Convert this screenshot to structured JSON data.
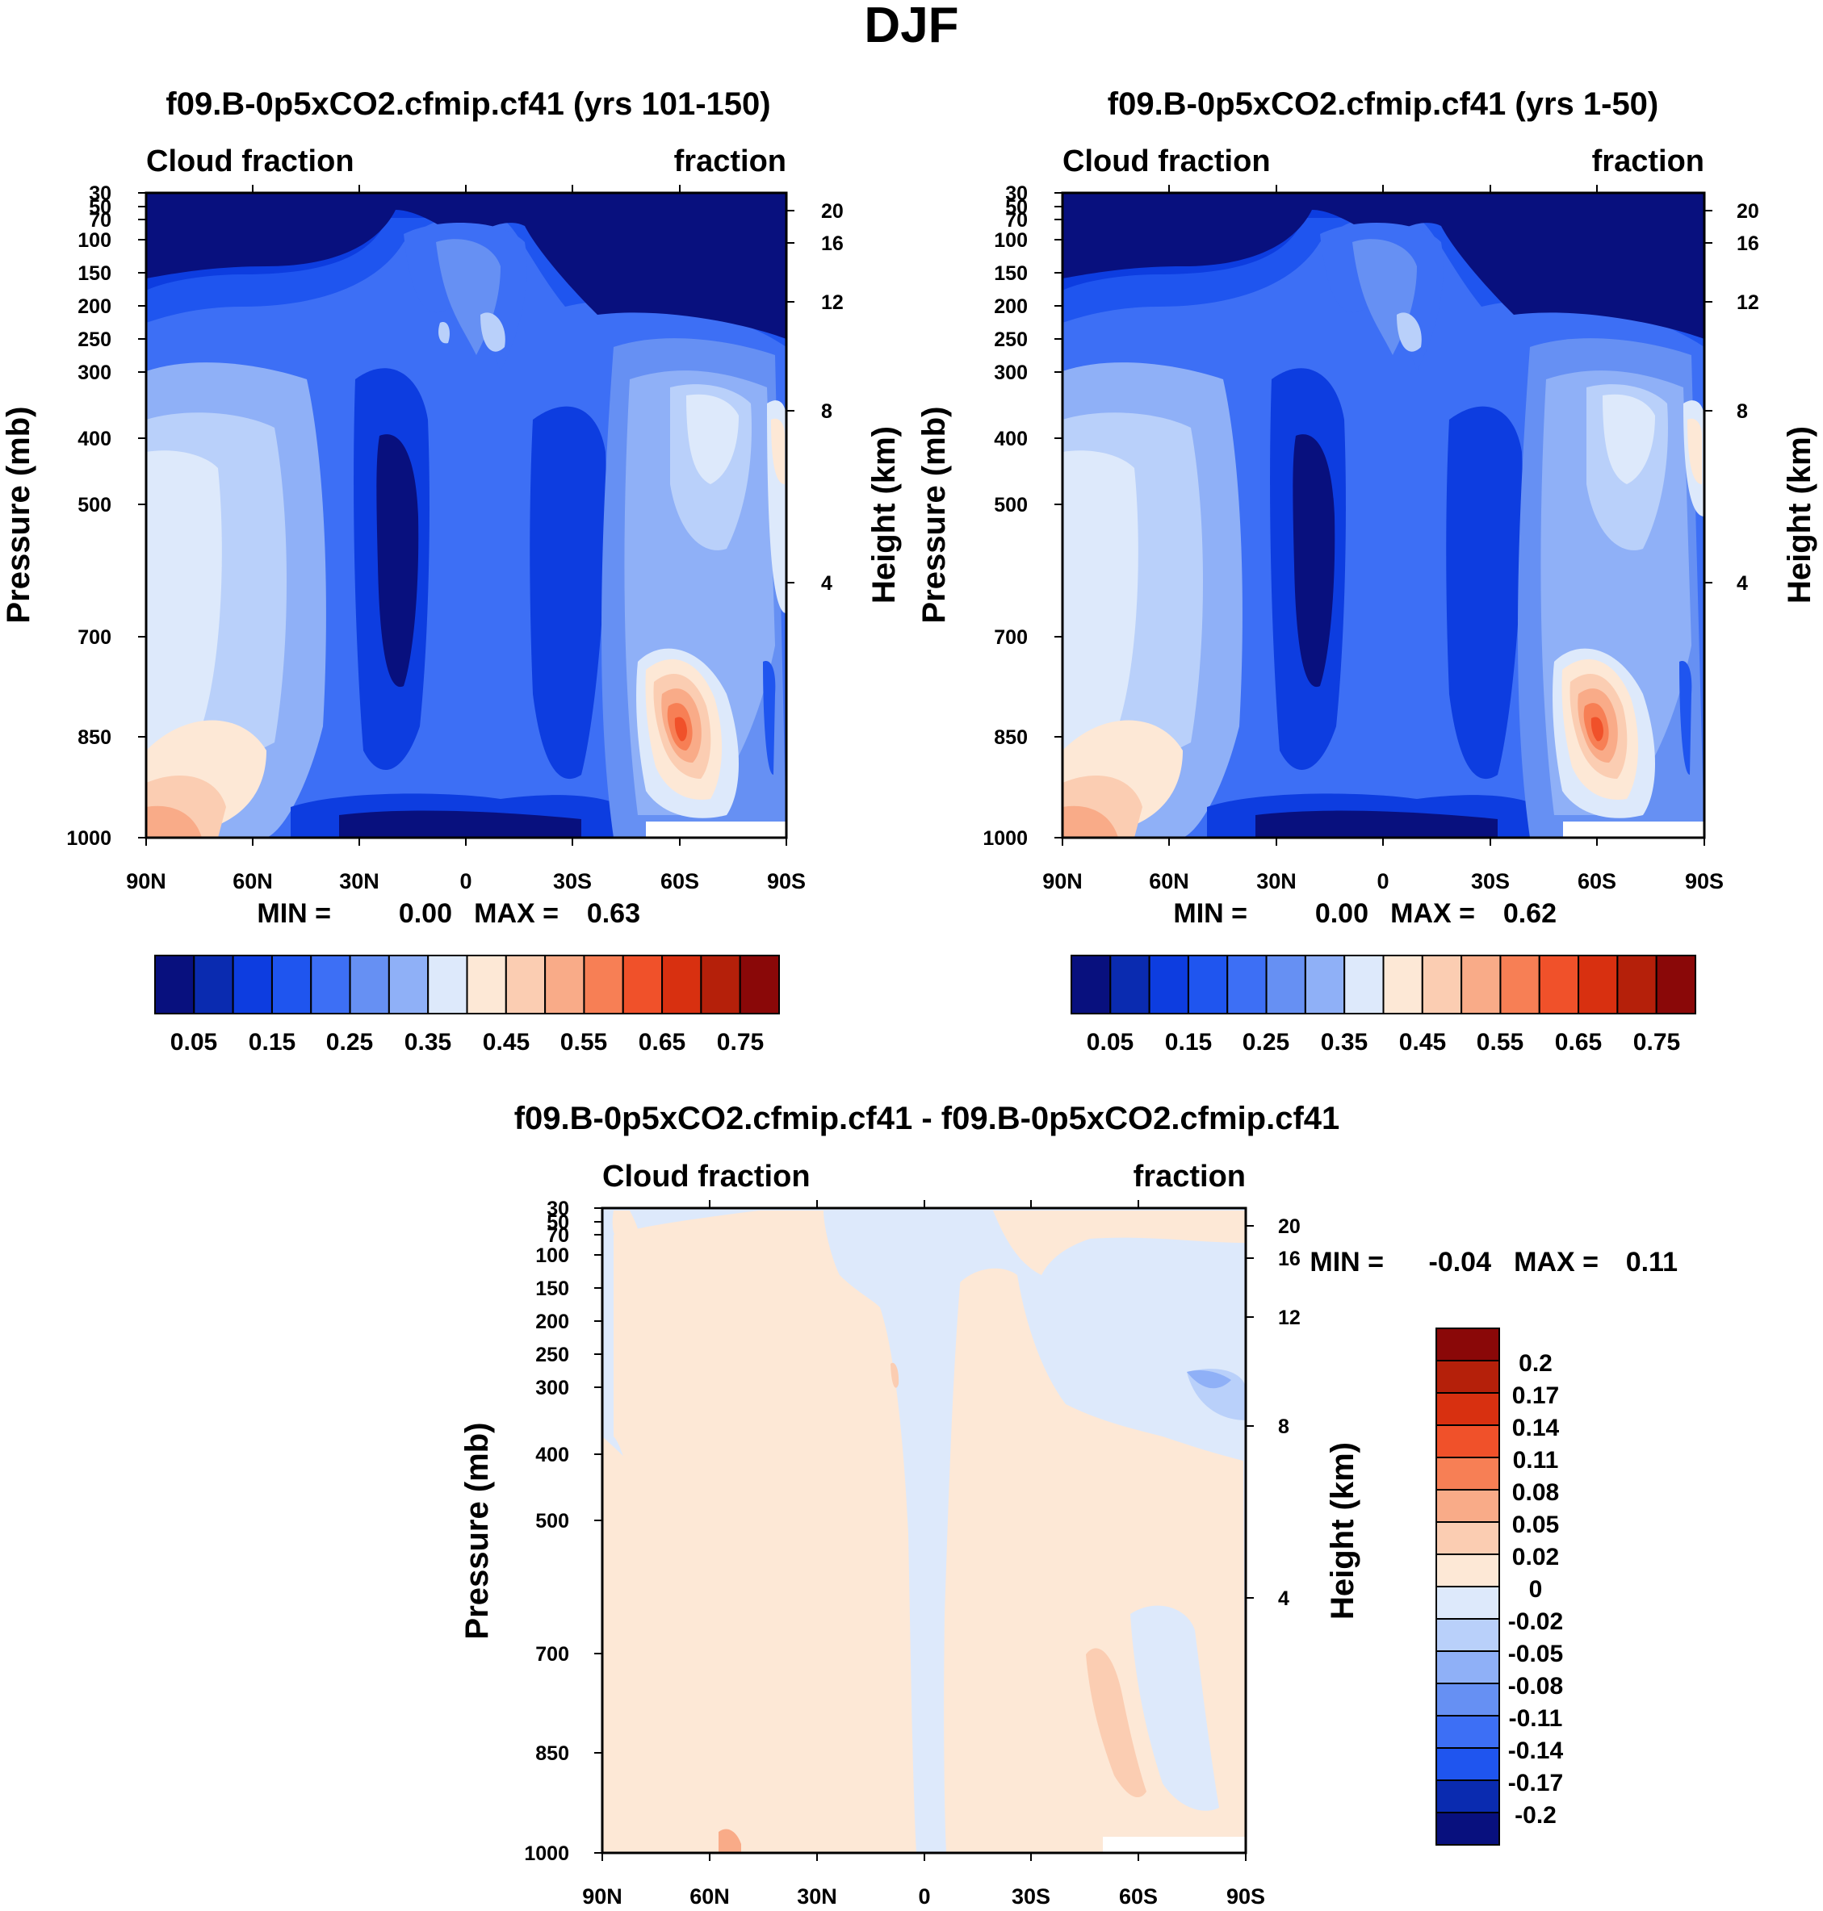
{
  "figure_title": "DJF",
  "chart_data": [
    {
      "type": "heatmap",
      "title": "f09.B-0p5xCO2.cfmip.cf41 (yrs 101-150)",
      "left_label": "Cloud fraction",
      "right_label": "fraction",
      "xlabel": "",
      "ylabel": "Pressure (mb)",
      "ylabel_right": "Height (km)",
      "x_ticks": [
        "90N",
        "60N",
        "30N",
        "0",
        "30S",
        "60S",
        "90S"
      ],
      "y_ticks": [
        "30",
        "50",
        "70",
        "100",
        "150",
        "200",
        "250",
        "300",
        "400",
        "500",
        "700",
        "850",
        "1000"
      ],
      "y_ticks_right": [
        "20",
        "16",
        "12",
        "8",
        "4"
      ],
      "min_label": "MIN =",
      "min_value": "0.00",
      "max_label": "MAX =",
      "max_value": "0.63",
      "colorbar_labels": [
        "0.05",
        "0.15",
        "0.25",
        "0.35",
        "0.45",
        "0.55",
        "0.65",
        "0.75"
      ],
      "colorbar_levels": 16,
      "xlim": [
        90,
        -90
      ],
      "ylim": [
        1000,
        30
      ]
    },
    {
      "type": "heatmap",
      "title": "f09.B-0p5xCO2.cfmip.cf41 (yrs 1-50)",
      "left_label": "Cloud fraction",
      "right_label": "fraction",
      "xlabel": "",
      "ylabel": "Pressure (mb)",
      "ylabel_right": "Height (km)",
      "x_ticks": [
        "90N",
        "60N",
        "30N",
        "0",
        "30S",
        "60S",
        "90S"
      ],
      "y_ticks": [
        "30",
        "50",
        "70",
        "100",
        "150",
        "200",
        "250",
        "300",
        "400",
        "500",
        "700",
        "850",
        "1000"
      ],
      "y_ticks_right": [
        "20",
        "16",
        "12",
        "8",
        "4"
      ],
      "min_label": "MIN =",
      "min_value": "0.00",
      "max_label": "MAX =",
      "max_value": "0.62",
      "colorbar_labels": [
        "0.05",
        "0.15",
        "0.25",
        "0.35",
        "0.45",
        "0.55",
        "0.65",
        "0.75"
      ],
      "colorbar_levels": 16,
      "xlim": [
        90,
        -90
      ],
      "ylim": [
        1000,
        30
      ]
    },
    {
      "type": "heatmap",
      "title": "f09.B-0p5xCO2.cfmip.cf41 - f09.B-0p5xCO2.cfmip.cf41",
      "left_label": "Cloud fraction",
      "right_label": "fraction",
      "xlabel": "",
      "ylabel": "Pressure (mb)",
      "ylabel_right": "Height (km)",
      "x_ticks": [
        "90N",
        "60N",
        "30N",
        "0",
        "30S",
        "60S",
        "90S"
      ],
      "y_ticks": [
        "30",
        "50",
        "70",
        "100",
        "150",
        "200",
        "250",
        "300",
        "400",
        "500",
        "700",
        "850",
        "1000"
      ],
      "y_ticks_right": [
        "20",
        "16",
        "12",
        "8",
        "4"
      ],
      "min_label": "MIN =",
      "min_value": "-0.04",
      "max_label": "MAX =",
      "max_value": "0.11",
      "colorbar_labels": [
        "0.2",
        "0.17",
        "0.14",
        "0.11",
        "0.08",
        "0.05",
        "0.02",
        "0",
        "-0.02",
        "-0.05",
        "-0.08",
        "-0.11",
        "-0.14",
        "-0.17",
        "-0.2"
      ],
      "colorbar_levels": 16,
      "xlim": [
        90,
        -90
      ],
      "ylim": [
        1000,
        30
      ]
    }
  ],
  "colors": {
    "diverging": [
      "#08107e",
      "#0a2bb0",
      "#0d3de0",
      "#1f55ef",
      "#3d6ff5",
      "#6690f3",
      "#8fb0f7",
      "#b9d0fa",
      "#dde9fb",
      "#fde8d6",
      "#fbcdb2",
      "#f9ab88",
      "#f77f55",
      "#f0512a",
      "#d83010",
      "#b5200a",
      "#8a0808"
    ]
  }
}
